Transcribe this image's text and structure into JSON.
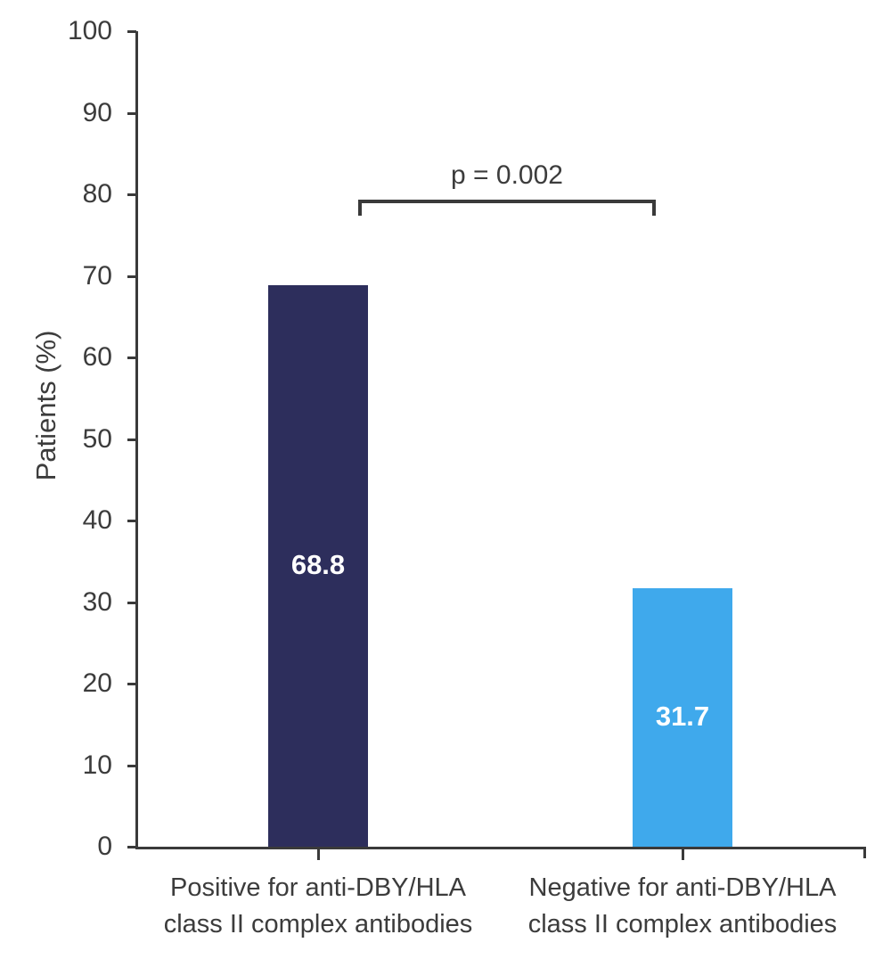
{
  "chart_data": {
    "type": "bar",
    "title": "",
    "xlabel": "",
    "ylabel": "Patients (%)",
    "categories": [
      "Positive for anti-DBY/HLA class II complex antibodies",
      "Negative for anti-DBY/HLA class II complex antibodies"
    ],
    "category_lines": [
      [
        "Positive for anti-DBY/HLA",
        "class II complex antibodies"
      ],
      [
        "Negative for anti-DBY/HLA",
        "class II complex antibodies"
      ]
    ],
    "values": [
      68.8,
      31.7
    ],
    "value_labels": [
      "68.8",
      "31.7"
    ],
    "bar_colors": [
      "#2d2e5c",
      "#3fa9ec"
    ],
    "value_label_color": "#ffffff",
    "ylim": [
      0,
      100
    ],
    "yticks": [
      0,
      10,
      20,
      30,
      40,
      50,
      60,
      70,
      80,
      90,
      100
    ],
    "grid": false,
    "legend": "none",
    "axis_color": "#3a3a3a",
    "text_color": "#3c3c3c",
    "annotation": {
      "text": "p = 0.002",
      "type": "significance-bracket",
      "connects": [
        "Positive for anti-DBY/HLA class II complex antibodies",
        "Negative for anti-DBY/HLA class II complex antibodies"
      ]
    }
  }
}
